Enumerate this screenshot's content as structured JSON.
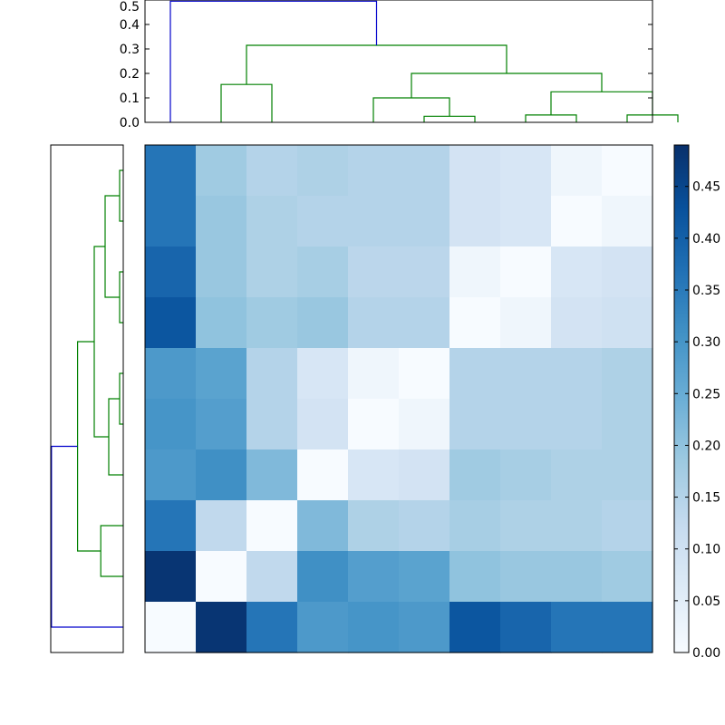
{
  "chart_data": [
    {
      "type": "dendrogram",
      "panel": "top",
      "yticks": [
        "0.0",
        "0.1",
        "0.2",
        "0.3",
        "0.4",
        "0.5"
      ],
      "ylim": [
        0,
        0.5
      ],
      "leaf_count": 10,
      "link_colors": {
        "above_threshold": "#0000cc",
        "below_threshold": "#008000"
      },
      "links": [
        {
          "x": [
            1.5,
            1.5,
            2.5,
            2.5
          ],
          "y": [
            0.0,
            0.155,
            0.155,
            0.0
          ],
          "color": "#008000"
        },
        {
          "x": [
            5.5,
            5.5,
            6.5,
            6.5
          ],
          "y": [
            0.0,
            0.025,
            0.025,
            0.0
          ],
          "color": "#008000"
        },
        {
          "x": [
            4.5,
            4.5,
            6.0,
            6.0
          ],
          "y": [
            0.0,
            0.1,
            0.1,
            0.025
          ],
          "color": "#008000"
        },
        {
          "x": [
            7.5,
            7.5,
            8.5,
            8.5
          ],
          "y": [
            0.0,
            0.03,
            0.03,
            0.0
          ],
          "color": "#008000"
        },
        {
          "x": [
            9.5,
            9.5,
            10.5,
            10.5
          ],
          "y": [
            0.0,
            0.03,
            0.03,
            0.0
          ],
          "color": "#008000"
        },
        {
          "x": [
            8.0,
            8.0,
            10.0,
            10.0
          ],
          "y": [
            0.03,
            0.125,
            0.125,
            0.03
          ],
          "color": "#008000"
        },
        {
          "x": [
            5.25,
            5.25,
            9.0,
            9.0
          ],
          "y": [
            0.1,
            0.2,
            0.2,
            0.125
          ],
          "color": "#008000"
        },
        {
          "x": [
            2.0,
            2.0,
            7.125,
            7.125
          ],
          "y": [
            0.155,
            0.315,
            0.315,
            0.2
          ],
          "color": "#008000"
        },
        {
          "x": [
            0.5,
            0.5,
            4.5625,
            4.5625
          ],
          "y": [
            0.0,
            0.495,
            0.495,
            0.315
          ],
          "color": "#0000cc"
        }
      ]
    },
    {
      "type": "heatmap",
      "panel": "center",
      "colormap": "Blues",
      "rows": 10,
      "cols": 10,
      "values": [
        [
          0.36,
          0.18,
          0.15,
          0.16,
          0.15,
          0.15,
          0.09,
          0.08,
          0.02,
          0.0
        ],
        [
          0.36,
          0.19,
          0.16,
          0.15,
          0.15,
          0.15,
          0.09,
          0.08,
          0.0,
          0.02
        ],
        [
          0.39,
          0.19,
          0.16,
          0.17,
          0.14,
          0.14,
          0.02,
          0.0,
          0.08,
          0.09
        ],
        [
          0.42,
          0.2,
          0.18,
          0.19,
          0.15,
          0.15,
          0.0,
          0.02,
          0.09,
          0.1
        ],
        [
          0.29,
          0.27,
          0.15,
          0.08,
          0.02,
          0.0,
          0.15,
          0.15,
          0.15,
          0.16
        ],
        [
          0.3,
          0.28,
          0.15,
          0.09,
          0.0,
          0.02,
          0.15,
          0.15,
          0.15,
          0.16
        ],
        [
          0.29,
          0.31,
          0.22,
          0.0,
          0.08,
          0.09,
          0.18,
          0.17,
          0.16,
          0.16
        ],
        [
          0.36,
          0.13,
          0.0,
          0.22,
          0.16,
          0.15,
          0.17,
          0.16,
          0.16,
          0.15
        ],
        [
          0.48,
          0.0,
          0.13,
          0.31,
          0.28,
          0.27,
          0.2,
          0.19,
          0.19,
          0.18
        ],
        [
          0.0,
          0.48,
          0.36,
          0.29,
          0.3,
          0.29,
          0.42,
          0.39,
          0.36,
          0.36
        ]
      ]
    },
    {
      "type": "colorbar",
      "panel": "right",
      "range": [
        0.0,
        0.49
      ],
      "ticks": [
        "0.00",
        "0.05",
        "0.10",
        "0.15",
        "0.20",
        "0.25",
        "0.30",
        "0.35",
        "0.40",
        "0.45"
      ]
    },
    {
      "type": "dendrogram",
      "panel": "left",
      "orientation": "right",
      "leaf_count": 10,
      "xlim": [
        0.5,
        0.0
      ],
      "links": [
        {
          "leaf_y": [
            0.5,
            1.5
          ],
          "merge": 0.025,
          "color": "#008000"
        },
        {
          "leaf_y": [
            2.5,
            3.5
          ],
          "merge": 0.025,
          "color": "#008000"
        },
        {
          "leaf_y": [
            1.0,
            3.0
          ],
          "merge": 0.125,
          "color": "#008000"
        },
        {
          "leaf_y": [
            4.5,
            5.5
          ],
          "merge": 0.025,
          "color": "#008000"
        },
        {
          "leaf_y": [
            6.5,
            5.0
          ],
          "merge": 0.1,
          "color": "#008000"
        },
        {
          "leaf_y": [
            2.0,
            5.75
          ],
          "merge": 0.2,
          "color": "#008000"
        },
        {
          "leaf_y": [
            7.5,
            8.5
          ],
          "merge": 0.155,
          "color": "#008000"
        },
        {
          "leaf_y": [
            3.875,
            8.0
          ],
          "merge": 0.315,
          "color": "#008000"
        },
        {
          "leaf_y": [
            5.9375,
            9.5
          ],
          "merge": 0.495,
          "color": "#0000cc"
        }
      ]
    }
  ]
}
